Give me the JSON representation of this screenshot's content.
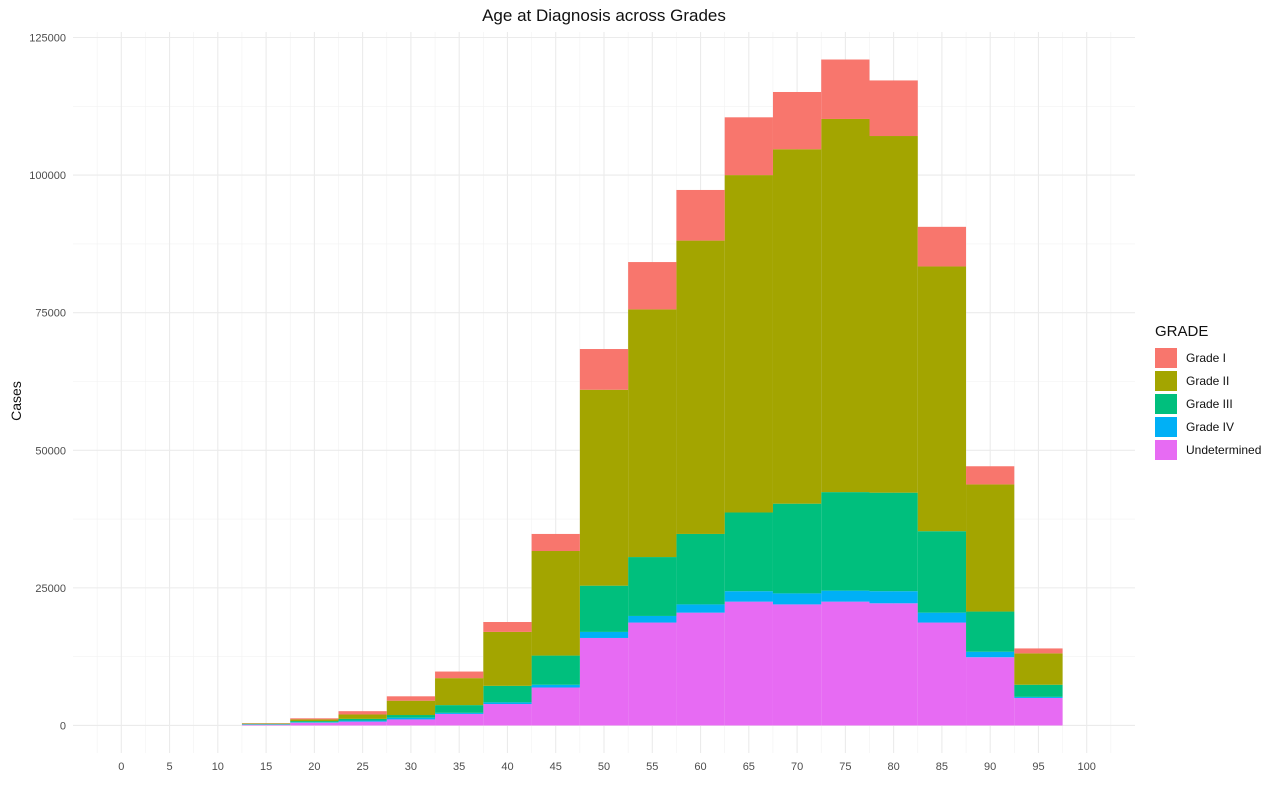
{
  "chart_data": {
    "type": "bar",
    "stacked": true,
    "title": "Age at Diagnosis across Grades",
    "xlabel": "",
    "ylabel": "Cases",
    "xlim": [
      -5,
      105
    ],
    "ylim": [
      -5000,
      126000
    ],
    "x_ticks": [
      "0",
      "5",
      "10",
      "15",
      "20",
      "25",
      "30",
      "35",
      "40",
      "45",
      "50",
      "55",
      "60",
      "65",
      "70",
      "75",
      "80",
      "85",
      "90",
      "95",
      "100"
    ],
    "y_ticks": [
      "0",
      "25000",
      "50000",
      "75000",
      "100000",
      "125000"
    ],
    "bin_width": 5,
    "x": [
      15,
      20,
      25,
      30,
      35,
      40,
      45,
      50,
      55,
      60,
      65,
      70,
      75,
      80,
      85,
      90,
      95
    ],
    "grid": true,
    "legend": {
      "title": "GRADE",
      "position": "right"
    },
    "series": [
      {
        "name": "Undetermined",
        "color": "#E76BF3",
        "values": [
          150,
          500,
          700,
          1100,
          2100,
          3900,
          6900,
          15900,
          18700,
          20500,
          22500,
          22000,
          22500,
          22200,
          18700,
          12400,
          5000
        ]
      },
      {
        "name": "Grade IV",
        "color": "#00B0F6",
        "values": [
          50,
          100,
          200,
          300,
          200,
          300,
          500,
          1100,
          1200,
          1500,
          1900,
          2000,
          2000,
          2200,
          1800,
          1000,
          200
        ]
      },
      {
        "name": "Grade III",
        "color": "#00BF7D",
        "values": [
          100,
          200,
          300,
          500,
          1400,
          3000,
          5300,
          8400,
          10700,
          12800,
          14300,
          16300,
          17900,
          17900,
          14800,
          7300,
          2200
        ]
      },
      {
        "name": "Grade II",
        "color": "#A3A500",
        "values": [
          100,
          300,
          800,
          2600,
          4900,
          9800,
          19000,
          35600,
          45000,
          53300,
          61300,
          64400,
          67800,
          64800,
          48100,
          23100,
          5700
        ]
      },
      {
        "name": "Grade I",
        "color": "#F8766D",
        "values": [
          50,
          200,
          600,
          800,
          1200,
          1800,
          3100,
          7400,
          8600,
          9200,
          10500,
          10400,
          10800,
          10100,
          7200,
          3300,
          900
        ]
      }
    ]
  },
  "legend_items": [
    {
      "label": "Grade I",
      "color": "#F8766D"
    },
    {
      "label": "Grade II",
      "color": "#A3A500"
    },
    {
      "label": "Grade III",
      "color": "#00BF7D"
    },
    {
      "label": "Grade IV",
      "color": "#00B0F6"
    },
    {
      "label": "Undetermined",
      "color": "#E76BF3"
    }
  ]
}
